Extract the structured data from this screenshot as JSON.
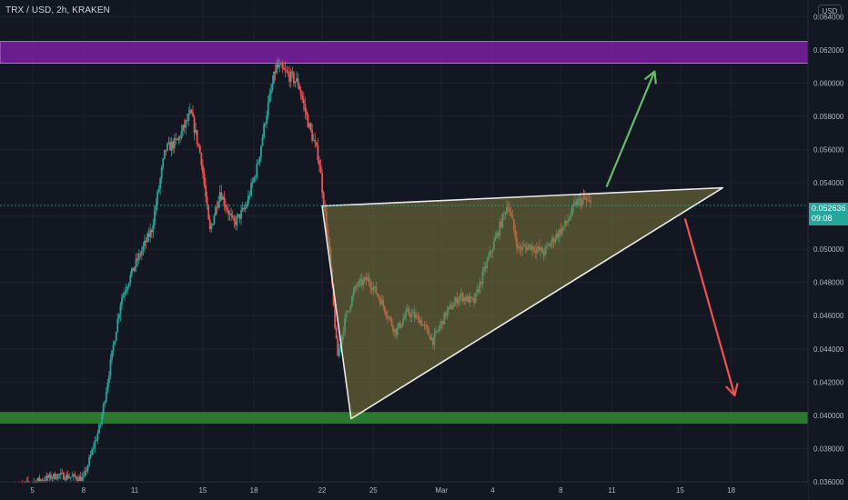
{
  "header": {
    "symbol_line": "TRX / USD, 2h, KRAKEN"
  },
  "currency_button": "USD",
  "last_price": {
    "value": "0.052636",
    "countdown": "09:08",
    "color": "#26a69a"
  },
  "colors": {
    "background": "#131722",
    "grid": "#1e222d",
    "up": "#26a69a",
    "down": "#ef5350",
    "resistance_zone": "#7b1fa2",
    "support_zone": "#2e7d32",
    "triangle_fill": "#807a3a",
    "up_arrow": "#66bb6a",
    "down_arrow": "#ef5350"
  },
  "chart_data": {
    "type": "candlestick",
    "title": "",
    "xlabel": "",
    "ylabel": "",
    "ylim": [
      0.036,
      0.065
    ],
    "y_ticks": [
      "0.064000",
      "0.062000",
      "0.060000",
      "0.058000",
      "0.056000",
      "0.054000",
      "0.052000",
      "0.050000",
      "0.048000",
      "0.046000",
      "0.044000",
      "0.042000",
      "0.040000",
      "0.038000",
      "0.036000"
    ],
    "x_ticks": [
      {
        "label": "5",
        "day": 5
      },
      {
        "label": "8",
        "day": 8
      },
      {
        "label": "11",
        "day": 11
      },
      {
        "label": "15",
        "day": 15
      },
      {
        "label": "18",
        "day": 18
      },
      {
        "label": "22",
        "day": 22
      },
      {
        "label": "25",
        "day": 25
      },
      {
        "label": "Mar",
        "day": 29
      },
      {
        "label": "4",
        "day": 32
      },
      {
        "label": "8",
        "day": 36
      },
      {
        "label": "11",
        "day": 39
      },
      {
        "label": "15",
        "day": 43
      },
      {
        "label": "18",
        "day": 46
      }
    ],
    "x_range_days": [
      3.1,
      50.5
    ],
    "price_path": [
      {
        "day": 4.0,
        "price": 0.0357
      },
      {
        "day": 6.5,
        "price": 0.0364
      },
      {
        "day": 8.0,
        "price": 0.0362
      },
      {
        "day": 9.0,
        "price": 0.0395
      },
      {
        "day": 10.2,
        "price": 0.047
      },
      {
        "day": 11.0,
        "price": 0.049
      },
      {
        "day": 12.0,
        "price": 0.0512
      },
      {
        "day": 12.8,
        "price": 0.056
      },
      {
        "day": 13.5,
        "price": 0.0565
      },
      {
        "day": 14.3,
        "price": 0.0582
      },
      {
        "day": 14.9,
        "price": 0.0555
      },
      {
        "day": 15.4,
        "price": 0.051
      },
      {
        "day": 16.0,
        "price": 0.0535
      },
      {
        "day": 16.8,
        "price": 0.0515
      },
      {
        "day": 17.5,
        "price": 0.0525
      },
      {
        "day": 18.2,
        "price": 0.055
      },
      {
        "day": 18.7,
        "price": 0.058
      },
      {
        "day": 19.3,
        "price": 0.061
      },
      {
        "day": 20.0,
        "price": 0.0605
      },
      {
        "day": 20.6,
        "price": 0.06
      },
      {
        "day": 21.2,
        "price": 0.0575
      },
      {
        "day": 21.8,
        "price": 0.0555
      },
      {
        "day": 22.4,
        "price": 0.05
      },
      {
        "day": 22.9,
        "price": 0.0435
      },
      {
        "day": 23.4,
        "price": 0.046
      },
      {
        "day": 24.0,
        "price": 0.0478
      },
      {
        "day": 24.7,
        "price": 0.0482
      },
      {
        "day": 25.5,
        "price": 0.0468
      },
      {
        "day": 26.3,
        "price": 0.045
      },
      {
        "day": 27.0,
        "price": 0.0462
      },
      {
        "day": 27.7,
        "price": 0.0458
      },
      {
        "day": 28.5,
        "price": 0.0445
      },
      {
        "day": 29.3,
        "price": 0.0462
      },
      {
        "day": 30.1,
        "price": 0.0472
      },
      {
        "day": 30.9,
        "price": 0.0468
      },
      {
        "day": 31.6,
        "price": 0.049
      },
      {
        "day": 32.3,
        "price": 0.051
      },
      {
        "day": 32.9,
        "price": 0.0528
      },
      {
        "day": 33.5,
        "price": 0.05
      },
      {
        "day": 34.2,
        "price": 0.0502
      },
      {
        "day": 35.0,
        "price": 0.0498
      },
      {
        "day": 35.7,
        "price": 0.0508
      },
      {
        "day": 36.3,
        "price": 0.0515
      },
      {
        "day": 36.9,
        "price": 0.0528
      },
      {
        "day": 37.4,
        "price": 0.053
      },
      {
        "day": 37.8,
        "price": 0.0526
      }
    ],
    "annotations": {
      "resistance_zone": [
        0.0612,
        0.0625
      ],
      "support_zone": [
        0.0395,
        0.0402
      ],
      "last_price_line": 0.052636,
      "ascending_triangle": [
        {
          "day": 22.0,
          "price": 0.0526
        },
        {
          "day": 45.5,
          "price": 0.0537
        },
        {
          "day": 23.7,
          "price": 0.0398
        }
      ],
      "breakout_arrow": {
        "from": {
          "day": 38.7,
          "price": 0.0538
        },
        "to": {
          "day": 41.5,
          "price": 0.0607
        }
      },
      "breakdown_arrow": {
        "from": {
          "day": 43.3,
          "price": 0.0518
        },
        "to": {
          "day": 46.2,
          "price": 0.0412
        }
      }
    }
  }
}
